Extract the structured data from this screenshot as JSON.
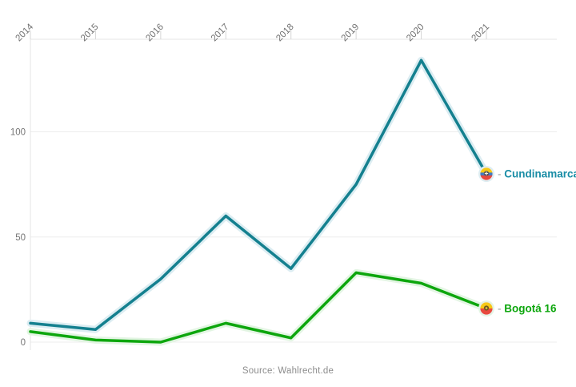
{
  "chart_data": {
    "type": "line",
    "x": [
      2014,
      2015,
      2016,
      2017,
      2018,
      2019,
      2020,
      2021
    ],
    "x_tick_labels": [
      "2014",
      "2015",
      "2016",
      "2017",
      "2018",
      "2019",
      "2020",
      "2021"
    ],
    "x_axis_position": "top",
    "x_label_rotation": -45,
    "y_ticks": [
      0,
      50,
      100
    ],
    "y_tick_labels": [
      "0",
      "50",
      "100"
    ],
    "ylim": [
      0,
      144
    ],
    "grid": true,
    "legend_position": "end-of-line",
    "legend_dash": "-",
    "series": [
      {
        "name": "Cundinamarca",
        "values": [
          9,
          6,
          30,
          60,
          35,
          75,
          134,
          80
        ],
        "color": "#14808f",
        "halo_color": "#dcedf2",
        "label": "Cundinamarca",
        "label_color": "#1a8da6",
        "flag_icon": {
          "icon_name": "cundinamarca-flag-icon",
          "stripes": [
            "#f6c915",
            "#3f7cc4",
            "#e8493f"
          ],
          "stripe_heights": [
            0.4,
            0.22,
            0.38
          ],
          "emblem_color": "#4a4a55",
          "emblem_shape": "cross",
          "emblem_detail": "#f5f0e0"
        }
      },
      {
        "name": "Bogotá 16",
        "values": [
          5,
          1,
          0,
          9,
          2,
          33,
          28,
          16
        ],
        "color": "#0da60d",
        "halo_color": "#e3f5e3",
        "label": "Bogotá 16",
        "label_color": "#0da60d",
        "flag_icon": {
          "icon_name": "bogota-flag-icon",
          "stripes": [
            "#f6c915",
            "#e8493f"
          ],
          "stripe_heights": [
            0.5,
            0.5
          ],
          "emblem_color": "#6e5a1e",
          "emblem_shape": "dot",
          "emblem_detail": "#e8c83c"
        }
      }
    ]
  },
  "footer": {
    "source": "Source: Wahlrecht.de"
  }
}
